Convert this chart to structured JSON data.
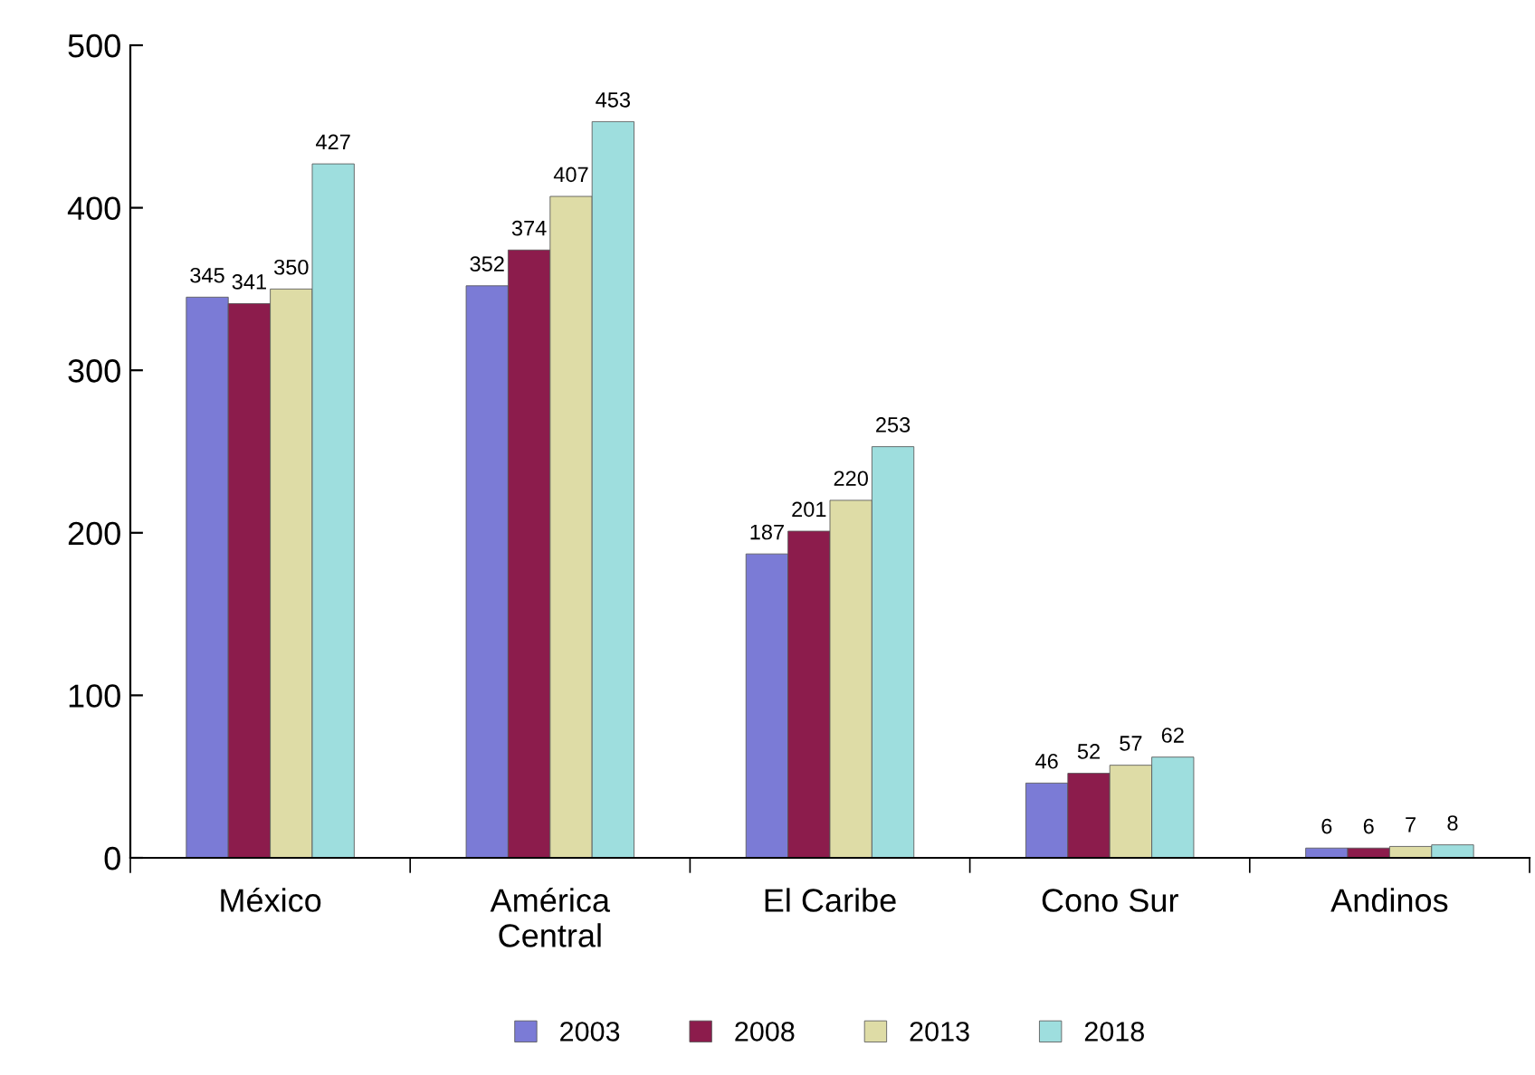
{
  "chart_data": {
    "type": "bar",
    "categories": [
      "México",
      "América\nCentral",
      "El Caribe",
      "Cono Sur",
      "Andinos"
    ],
    "series": [
      {
        "name": "2003",
        "color": "#7b7bd6",
        "values": [
          345,
          352,
          187,
          46,
          6
        ]
      },
      {
        "name": "2008",
        "color": "#8c1c4c",
        "values": [
          341,
          374,
          201,
          52,
          6
        ]
      },
      {
        "name": "2013",
        "color": "#dedca6",
        "values": [
          350,
          407,
          220,
          57,
          7
        ]
      },
      {
        "name": "2018",
        "color": "#9edede",
        "values": [
          427,
          453,
          253,
          62,
          8
        ]
      }
    ],
    "ylim": [
      0,
      500
    ],
    "yticks": [
      0,
      100,
      200,
      300,
      400,
      500
    ],
    "grid": false,
    "legend": "bottom",
    "data_labels": true
  }
}
